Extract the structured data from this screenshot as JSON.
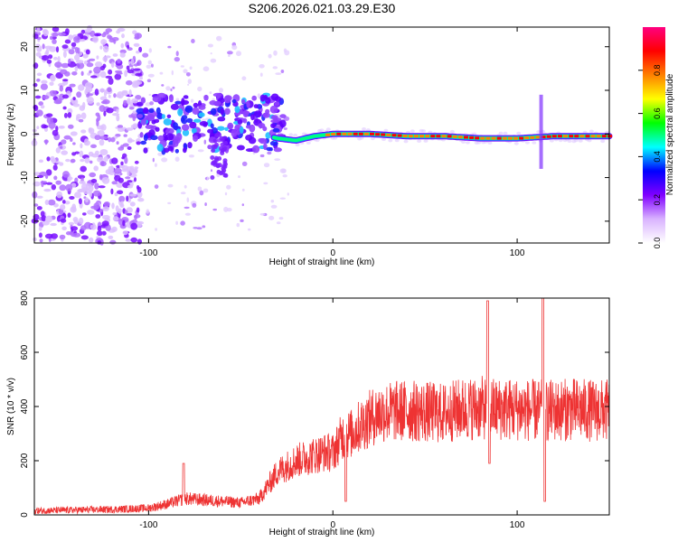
{
  "title": "S206.2026.021.03.29.E30",
  "chart_data": [
    {
      "type": "heatmap",
      "xlabel": "Height of straight line (km)",
      "ylabel": "Frequency (Hz)",
      "xlim": [
        -162,
        150
      ],
      "ylim": [
        -25,
        24.5
      ],
      "xticks": [
        -100,
        0,
        100
      ],
      "xtick_labels": [
        "-100",
        "0",
        "100"
      ],
      "yticks": [
        -20,
        -10,
        0,
        10,
        20
      ],
      "ytick_labels": [
        "-20",
        "-10",
        "0",
        "10",
        "20"
      ],
      "colorbar": {
        "label": "Normalized spectral amplitude",
        "range": [
          0,
          1
        ],
        "ticks": [
          0.0,
          0.2,
          0.4,
          0.6,
          0.8
        ],
        "tick_labels": [
          "0.0",
          "0.2",
          "0.4",
          "0.6",
          "0.8"
        ],
        "colors": [
          "#ffffff",
          "#d9b3ff",
          "#8000ff",
          "#0000ff",
          "#00ffff",
          "#00ff00",
          "#ffff00",
          "#ff8000",
          "#ff0000",
          "#ff0080"
        ]
      },
      "ridge": {
        "x": [
          -105,
          -80,
          -60,
          -40,
          -30,
          -20,
          -10,
          0,
          10,
          20,
          40,
          60,
          80,
          100,
          120,
          150
        ],
        "freq_hz": [
          1.5,
          2,
          1.5,
          0,
          -1,
          -1.5,
          -0.5,
          0,
          0,
          0,
          -0.5,
          -0.5,
          -1,
          -1,
          -0.5,
          -0.5
        ],
        "amplitude": [
          0.15,
          0.2,
          0.15,
          0.2,
          0.4,
          0.5,
          0.7,
          0.8,
          0.85,
          0.85,
          0.8,
          0.8,
          0.85,
          0.8,
          0.85,
          0.85
        ]
      },
      "spikes": [
        {
          "x": 113,
          "freq_range": [
            -8,
            9
          ],
          "amplitude": 0.3
        }
      ],
      "grid": false
    },
    {
      "type": "line",
      "xlabel": "Height of straight line (km)",
      "ylabel": "SNR (10 * v/v)",
      "xlim": [
        -162,
        150
      ],
      "ylim": [
        0,
        800
      ],
      "xticks": [
        -100,
        0,
        100
      ],
      "xtick_labels": [
        "-100",
        "0",
        "100"
      ],
      "yticks": [
        0,
        200,
        400,
        600,
        800
      ],
      "ytick_labels": [
        "0",
        "200",
        "400",
        "600",
        "800"
      ],
      "series": [
        {
          "color": "#ee3333",
          "x": [
            -162,
            -140,
            -120,
            -100,
            -90,
            -80,
            -70,
            -60,
            -50,
            -40,
            -35,
            -30,
            -25,
            -20,
            -15,
            -10,
            -5,
            0,
            5,
            10,
            15,
            20,
            25,
            30,
            40,
            50,
            60,
            70,
            80,
            90,
            100,
            110,
            120,
            130,
            140,
            150
          ],
          "y": [
            15,
            18,
            20,
            25,
            40,
            60,
            55,
            50,
            45,
            60,
            110,
            160,
            180,
            200,
            210,
            220,
            230,
            230,
            290,
            300,
            330,
            355,
            375,
            380,
            385,
            380,
            375,
            390,
            395,
            390,
            390,
            385,
            385,
            390,
            385,
            385
          ]
        }
      ],
      "spikes": [
        {
          "x": -81,
          "y": 190
        },
        {
          "x": 84,
          "y": 790
        },
        {
          "x": 85,
          "y": 190
        },
        {
          "x": 114,
          "y": 800
        },
        {
          "x": 115,
          "y": 50
        },
        {
          "x": 7,
          "y": 50
        }
      ],
      "grid": false
    }
  ]
}
